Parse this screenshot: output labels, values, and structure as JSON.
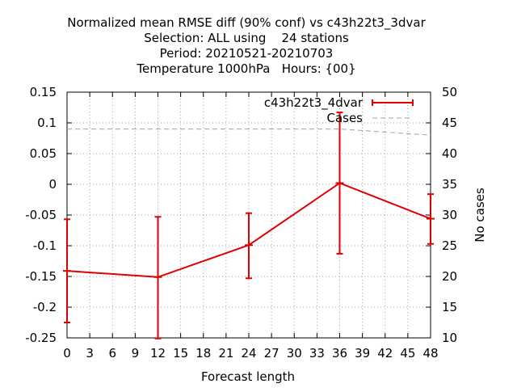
{
  "chart_data": {
    "type": "line",
    "title": [
      "Normalized mean RMSE diff (90% conf) vs c43h22t3_3dvar",
      "Selection: ALL using    24 stations",
      "Period: 20210521-20210703",
      "Temperature 1000hPa   Hours: {00}"
    ],
    "xlabel": "Forecast length",
    "ylabel": "",
    "y2label": "No cases",
    "xlim": [
      0,
      48
    ],
    "ylim": [
      -0.25,
      0.15
    ],
    "y2lim": [
      10,
      50
    ],
    "xticks": [
      0,
      3,
      6,
      9,
      12,
      15,
      18,
      21,
      24,
      27,
      30,
      33,
      36,
      39,
      42,
      45,
      48
    ],
    "yticks": [
      "0.15",
      "0.1",
      "0.05",
      "0",
      "-0.05",
      "-0.1",
      "-0.15",
      "-0.2",
      "-0.25"
    ],
    "yticks_values": [
      0.15,
      0.1,
      0.05,
      0,
      -0.05,
      -0.1,
      -0.15,
      -0.2,
      -0.25
    ],
    "y2ticks": [
      50,
      45,
      40,
      35,
      30,
      25,
      20,
      15,
      10
    ],
    "grid": true,
    "legend_position": "top-right",
    "series": [
      {
        "name": "c43h22t3_4dvar",
        "color": "#e00000",
        "x": [
          0,
          12,
          24,
          36,
          48
        ],
        "y": [
          -0.141,
          -0.151,
          -0.099,
          0.002,
          -0.056
        ],
        "err_low": [
          -0.225,
          -0.251,
          -0.153,
          -0.113,
          -0.097
        ],
        "err_high": [
          -0.057,
          -0.053,
          -0.047,
          0.117,
          -0.016
        ]
      },
      {
        "name": "Cases",
        "color": "#a0a0a0",
        "axis": "y2",
        "x": [
          0,
          12,
          24,
          36,
          48
        ],
        "y": [
          44,
          44,
          44,
          44,
          43
        ]
      }
    ]
  }
}
